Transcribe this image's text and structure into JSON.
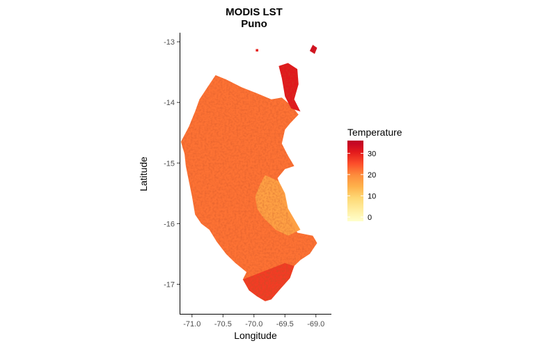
{
  "chart_data": {
    "type": "heatmap",
    "title": "MODIS LST",
    "subtitle": "Puno",
    "xlabel": "Longitude",
    "ylabel": "Latitude",
    "xlim": [
      -71.2,
      -68.75
    ],
    "ylim": [
      -17.5,
      -12.85
    ],
    "x_ticks": [
      -71.0,
      -70.5,
      -70.0,
      -69.5,
      -69.0
    ],
    "x_tick_labels": [
      "-71.0",
      "-70.5",
      "-70.0",
      "-69.5",
      "-69.0"
    ],
    "y_ticks": [
      -13,
      -14,
      -15,
      -16,
      -17
    ],
    "y_tick_labels": [
      "-13",
      "-14",
      "-15",
      "-16",
      "-17"
    ],
    "grid": false,
    "legend": {
      "title": "Temperature",
      "placement": "right",
      "range": [
        -2,
        36
      ],
      "breaks": [
        0,
        10,
        20,
        30
      ],
      "break_labels": [
        "0",
        "10",
        "20",
        "30"
      ],
      "colors": [
        "#ffffcc",
        "#ffeda0",
        "#fed976",
        "#feb24c",
        "#fd8d3c",
        "#fc4e2a",
        "#e31a1c",
        "#bd0026"
      ]
    },
    "regions": [
      {
        "name": "main-region",
        "mean_temperature": 22,
        "outline": [
          [
            -70.62,
            -13.55
          ],
          [
            -70.45,
            -13.62
          ],
          [
            -70.2,
            -13.75
          ],
          [
            -69.95,
            -13.85
          ],
          [
            -69.72,
            -13.95
          ],
          [
            -69.55,
            -13.92
          ],
          [
            -69.4,
            -14.05
          ],
          [
            -69.28,
            -14.2
          ],
          [
            -69.42,
            -14.35
          ],
          [
            -69.5,
            -14.45
          ],
          [
            -69.55,
            -14.68
          ],
          [
            -69.45,
            -14.88
          ],
          [
            -69.35,
            -15.05
          ],
          [
            -69.5,
            -15.1
          ],
          [
            -69.62,
            -15.25
          ],
          [
            -69.52,
            -15.5
          ],
          [
            -69.45,
            -15.85
          ],
          [
            -69.3,
            -16.15
          ],
          [
            -69.05,
            -16.2
          ],
          [
            -68.98,
            -16.32
          ],
          [
            -69.1,
            -16.5
          ],
          [
            -69.25,
            -16.6
          ],
          [
            -69.35,
            -16.7
          ],
          [
            -69.42,
            -16.9
          ],
          [
            -69.55,
            -17.05
          ],
          [
            -69.65,
            -17.15
          ],
          [
            -69.72,
            -17.25
          ],
          [
            -69.82,
            -17.28
          ],
          [
            -69.95,
            -17.2
          ],
          [
            -70.08,
            -17.1
          ],
          [
            -70.18,
            -16.92
          ],
          [
            -70.12,
            -16.8
          ],
          [
            -70.3,
            -16.65
          ],
          [
            -70.45,
            -16.5
          ],
          [
            -70.6,
            -16.3
          ],
          [
            -70.72,
            -16.1
          ],
          [
            -70.85,
            -16.0
          ],
          [
            -70.95,
            -15.85
          ],
          [
            -71.0,
            -15.55
          ],
          [
            -71.05,
            -15.3
          ],
          [
            -71.1,
            -15.05
          ],
          [
            -71.12,
            -14.85
          ],
          [
            -71.18,
            -14.65
          ],
          [
            -71.05,
            -14.4
          ],
          [
            -70.95,
            -14.15
          ],
          [
            -70.88,
            -13.95
          ],
          [
            -70.75,
            -13.75
          ]
        ]
      },
      {
        "name": "lake-titicaca",
        "mean_temperature": 17,
        "outline": [
          [
            -69.82,
            -15.2
          ],
          [
            -69.6,
            -15.3
          ],
          [
            -69.5,
            -15.5
          ],
          [
            -69.45,
            -15.75
          ],
          [
            -69.25,
            -16.1
          ],
          [
            -69.45,
            -16.2
          ],
          [
            -69.65,
            -16.1
          ],
          [
            -69.85,
            -15.9
          ],
          [
            -69.95,
            -15.75
          ],
          [
            -69.98,
            -15.55
          ],
          [
            -69.9,
            -15.35
          ]
        ]
      },
      {
        "name": "southern-highlands",
        "mean_temperature": 27,
        "outline": [
          [
            -70.0,
            -16.85
          ],
          [
            -69.75,
            -16.75
          ],
          [
            -69.5,
            -16.65
          ],
          [
            -69.35,
            -16.7
          ],
          [
            -69.42,
            -16.9
          ],
          [
            -69.55,
            -17.05
          ],
          [
            -69.72,
            -17.25
          ],
          [
            -69.82,
            -17.28
          ],
          [
            -69.95,
            -17.2
          ],
          [
            -70.08,
            -17.1
          ],
          [
            -70.18,
            -16.92
          ]
        ]
      },
      {
        "name": "northeast-patches",
        "mean_temperature": 31,
        "outline": [
          [
            -69.6,
            -13.4
          ],
          [
            -69.45,
            -13.35
          ],
          [
            -69.3,
            -13.45
          ],
          [
            -69.28,
            -13.7
          ],
          [
            -69.35,
            -13.95
          ],
          [
            -69.25,
            -14.15
          ],
          [
            -69.4,
            -14.1
          ],
          [
            -69.5,
            -13.9
          ],
          [
            -69.55,
            -13.6
          ]
        ]
      },
      {
        "name": "northeast-tip",
        "mean_temperature": 33,
        "outline": [
          [
            -69.05,
            -13.05
          ],
          [
            -68.98,
            -13.1
          ],
          [
            -69.02,
            -13.2
          ],
          [
            -69.1,
            -13.15
          ]
        ]
      },
      {
        "name": "isolated-pixel",
        "mean_temperature": 30,
        "outline": [
          [
            -69.97,
            -13.12
          ],
          [
            -69.93,
            -13.12
          ],
          [
            -69.93,
            -13.16
          ],
          [
            -69.97,
            -13.16
          ]
        ]
      }
    ]
  }
}
